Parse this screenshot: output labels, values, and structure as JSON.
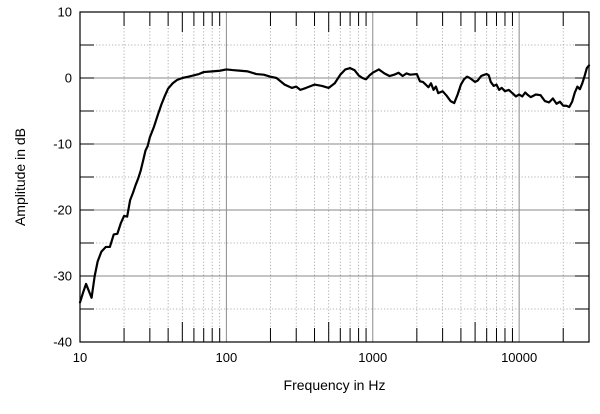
{
  "chart_data": {
    "type": "line",
    "title": "",
    "xlabel": "Frequency in Hz",
    "ylabel": "Amplitude in dB",
    "x_scale": "log",
    "xlim": [
      10,
      30000
    ],
    "ylim": [
      -40,
      10
    ],
    "grid": true,
    "x_tick_labels": [
      {
        "value": 10,
        "label": "10"
      },
      {
        "value": 100,
        "label": "100"
      },
      {
        "value": 1000,
        "label": "1000"
      },
      {
        "value": 10000,
        "label": "10000"
      }
    ],
    "y_tick_labels": [
      {
        "value": 10,
        "label": "10"
      },
      {
        "value": 0,
        "label": "0"
      },
      {
        "value": -10,
        "label": "-10"
      },
      {
        "value": -20,
        "label": "-20"
      },
      {
        "value": -30,
        "label": "-30"
      },
      {
        "value": -40,
        "label": "-40"
      }
    ],
    "series": [
      {
        "color": "#000000",
        "points": [
          [
            10,
            -34
          ],
          [
            10.5,
            -32.5
          ],
          [
            11,
            -31.2
          ],
          [
            11.6,
            -32.5
          ],
          [
            12,
            -33.3
          ],
          [
            12.6,
            -30
          ],
          [
            13.2,
            -27.8
          ],
          [
            14,
            -26.3
          ],
          [
            15,
            -25.6
          ],
          [
            16,
            -25.6
          ],
          [
            17,
            -23.7
          ],
          [
            18,
            -23.6
          ],
          [
            19,
            -22
          ],
          [
            20,
            -20.9
          ],
          [
            21,
            -21
          ],
          [
            22,
            -18.5
          ],
          [
            23,
            -17.4
          ],
          [
            24,
            -16.2
          ],
          [
            25,
            -15.2
          ],
          [
            26,
            -14
          ],
          [
            27,
            -12.5
          ],
          [
            28,
            -11
          ],
          [
            29,
            -10.3
          ],
          [
            30,
            -9
          ],
          [
            32,
            -7.4
          ],
          [
            34,
            -5.6
          ],
          [
            36,
            -4
          ],
          [
            38,
            -2.7
          ],
          [
            40,
            -1.6
          ],
          [
            43,
            -0.8
          ],
          [
            46,
            -0.3
          ],
          [
            50,
            0
          ],
          [
            55,
            0.2
          ],
          [
            60,
            0.4
          ],
          [
            65,
            0.6
          ],
          [
            70,
            0.9
          ],
          [
            80,
            1
          ],
          [
            90,
            1.1
          ],
          [
            100,
            1.3
          ],
          [
            110,
            1.2
          ],
          [
            125,
            1.1
          ],
          [
            140,
            1
          ],
          [
            160,
            0.6
          ],
          [
            180,
            0.5
          ],
          [
            200,
            0.2
          ],
          [
            220,
            0
          ],
          [
            250,
            -1
          ],
          [
            280,
            -1.5
          ],
          [
            300,
            -1.3
          ],
          [
            320,
            -1.8
          ],
          [
            350,
            -1.5
          ],
          [
            400,
            -1
          ],
          [
            450,
            -1.2
          ],
          [
            500,
            -1.5
          ],
          [
            550,
            -0.8
          ],
          [
            600,
            0.5
          ],
          [
            650,
            1.3
          ],
          [
            700,
            1.5
          ],
          [
            750,
            1.2
          ],
          [
            800,
            0.4
          ],
          [
            850,
            0
          ],
          [
            900,
            -0.2
          ],
          [
            950,
            0.4
          ],
          [
            1000,
            0.8
          ],
          [
            1100,
            1.3
          ],
          [
            1200,
            0.7
          ],
          [
            1300,
            0.3
          ],
          [
            1400,
            0.5
          ],
          [
            1500,
            0.8
          ],
          [
            1600,
            0.3
          ],
          [
            1700,
            0.7
          ],
          [
            1800,
            0.5
          ],
          [
            2000,
            0.6
          ],
          [
            2100,
            -0.5
          ],
          [
            2200,
            -0.6
          ],
          [
            2300,
            -1
          ],
          [
            2400,
            -1.4
          ],
          [
            2500,
            -0.8
          ],
          [
            2600,
            -1.8
          ],
          [
            2700,
            -1.3
          ],
          [
            2800,
            -2.3
          ],
          [
            3000,
            -2
          ],
          [
            3200,
            -2.7
          ],
          [
            3400,
            -3.5
          ],
          [
            3600,
            -3.8
          ],
          [
            3800,
            -2.5
          ],
          [
            4000,
            -1
          ],
          [
            4200,
            -0.2
          ],
          [
            4400,
            0.2
          ],
          [
            4600,
            0
          ],
          [
            4800,
            -0.3
          ],
          [
            5000,
            -0.6
          ],
          [
            5200,
            -0.4
          ],
          [
            5500,
            0.3
          ],
          [
            5800,
            0.5
          ],
          [
            6000,
            0.6
          ],
          [
            6200,
            0.4
          ],
          [
            6400,
            -0.6
          ],
          [
            6700,
            -1.2
          ],
          [
            7000,
            -1
          ],
          [
            7300,
            -1.8
          ],
          [
            7600,
            -1.5
          ],
          [
            8000,
            -2
          ],
          [
            8500,
            -1.8
          ],
          [
            9000,
            -2.3
          ],
          [
            9500,
            -2.8
          ],
          [
            10000,
            -2.5
          ],
          [
            10500,
            -2.8
          ],
          [
            11000,
            -2.2
          ],
          [
            11500,
            -2.6
          ],
          [
            12000,
            -2.9
          ],
          [
            13000,
            -2.5
          ],
          [
            14000,
            -2.6
          ],
          [
            15000,
            -3.5
          ],
          [
            16000,
            -3.7
          ],
          [
            17000,
            -3.1
          ],
          [
            18000,
            -3.9
          ],
          [
            19000,
            -3.6
          ],
          [
            20000,
            -4.2
          ],
          [
            21000,
            -4.2
          ],
          [
            22000,
            -4.4
          ],
          [
            23000,
            -3.6
          ],
          [
            24000,
            -2.2
          ],
          [
            25000,
            -1.3
          ],
          [
            26000,
            -1.7
          ],
          [
            27000,
            -0.8
          ],
          [
            28000,
            0.3
          ],
          [
            29000,
            1.5
          ],
          [
            30000,
            1.9
          ]
        ]
      }
    ]
  }
}
